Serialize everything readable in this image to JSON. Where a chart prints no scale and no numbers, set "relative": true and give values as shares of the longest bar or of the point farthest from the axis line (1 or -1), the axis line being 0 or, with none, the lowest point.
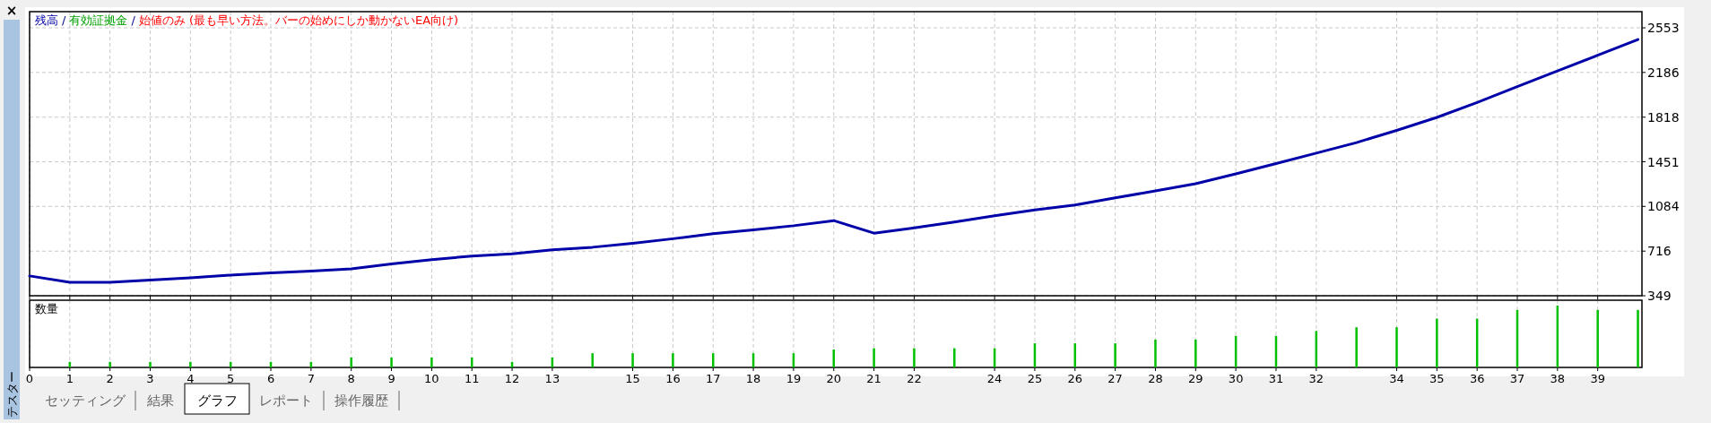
{
  "chart_data": [
    {
      "type": "line",
      "subtitle": "始値のみ (最も早い方法。バーの始めにしか動かないEA向け)",
      "annotations": [
        "/",
        "有効証拠金",
        "/"
      ],
      "legend": "top left",
      "grid": true,
      "tick_labels": "y",
      "x": [
        0,
        1,
        2,
        3,
        4,
        5,
        6,
        7,
        8,
        9,
        10,
        11,
        12,
        13,
        14,
        15,
        16,
        17,
        18,
        19,
        20,
        21,
        22,
        23,
        24,
        25,
        26,
        27,
        28,
        29,
        30,
        31,
        32,
        33,
        34,
        35,
        36,
        37,
        38,
        39,
        40
      ],
      "series": [
        {
          "name": "残高",
          "color": "#0000a8",
          "values": [
            512,
            460,
            460,
            478,
            497,
            519,
            537,
            551,
            571,
            611,
            645,
            676,
            693,
            726,
            748,
            781,
            818,
            859,
            891,
            925,
            967,
            864,
            907,
            956,
            1007,
            1055,
            1095,
            1155,
            1211,
            1270,
            1351,
            1436,
            1522,
            1609,
            1709,
            1816,
            1939,
            2069,
            2198,
            2327,
            2457
          ]
        }
      ],
      "xlim": [
        0,
        40.1
      ],
      "xticks": [
        {
          "value": 0,
          "label": null
        },
        {
          "value": 1,
          "label": null
        },
        {
          "value": 2,
          "label": null
        },
        {
          "value": 3,
          "label": null
        },
        {
          "value": 4,
          "label": null
        },
        {
          "value": 5,
          "label": null
        },
        {
          "value": 6,
          "label": null
        },
        {
          "value": 7,
          "label": null
        },
        {
          "value": 8,
          "label": null
        },
        {
          "value": 9,
          "label": null
        },
        {
          "value": 10,
          "label": null
        },
        {
          "value": 11,
          "label": null
        },
        {
          "value": 12,
          "label": null
        },
        {
          "value": 13,
          "label": null
        },
        {
          "value": 15,
          "label": null
        },
        {
          "value": 16,
          "label": null
        },
        {
          "value": 17,
          "label": null
        },
        {
          "value": 18,
          "label": null
        },
        {
          "value": 19,
          "label": null
        },
        {
          "value": 20,
          "label": null
        },
        {
          "value": 21,
          "label": null
        },
        {
          "value": 22,
          "label": null
        },
        {
          "value": 24,
          "label": null
        },
        {
          "value": 25,
          "label": null
        },
        {
          "value": 26,
          "label": null
        },
        {
          "value": 27,
          "label": null
        },
        {
          "value": 28,
          "label": null
        },
        {
          "value": 29,
          "label": null
        },
        {
          "value": 30,
          "label": null
        },
        {
          "value": 31,
          "label": null
        },
        {
          "value": 32,
          "label": null
        },
        {
          "value": 34,
          "label": null
        },
        {
          "value": 35,
          "label": null
        },
        {
          "value": 36,
          "label": null
        },
        {
          "value": 37,
          "label": null
        },
        {
          "value": 38,
          "label": null
        },
        {
          "value": 39,
          "label": null
        }
      ],
      "ylim": [
        349,
        2686
      ],
      "yticks": [
        349,
        716,
        1084,
        1451,
        1818,
        2186,
        2553
      ]
    },
    {
      "type": "bar",
      "title": "数量",
      "relative": true,
      "grid": "x",
      "tick_labels": "x",
      "color": "#00c000",
      "annotations": [
        "×",
        "テスター",
        "セッティング",
        "結果",
        "グラフ",
        "レポート",
        "操作履歴"
      ],
      "x": [
        1,
        2,
        3,
        4,
        5,
        6,
        7,
        8,
        9,
        10,
        11,
        12,
        13,
        14,
        15,
        16,
        17,
        18,
        19,
        20,
        21,
        22,
        23,
        24,
        25,
        26,
        27,
        28,
        29,
        30,
        31,
        32,
        33,
        34,
        35,
        36,
        37,
        38,
        39,
        40
      ],
      "values": [
        0.09,
        0.09,
        0.09,
        0.09,
        0.09,
        0.09,
        0.09,
        0.16,
        0.16,
        0.16,
        0.16,
        0.09,
        0.16,
        0.23,
        0.23,
        0.23,
        0.23,
        0.23,
        0.23,
        0.29,
        0.31,
        0.31,
        0.31,
        0.31,
        0.39,
        0.39,
        0.39,
        0.45,
        0.45,
        0.51,
        0.51,
        0.59,
        0.65,
        0.65,
        0.79,
        0.79,
        0.93,
        1,
        0.93,
        0.93
      ],
      "xlim": [
        0,
        40.1
      ],
      "xticks": [
        0,
        1,
        2,
        3,
        4,
        5,
        6,
        7,
        8,
        9,
        10,
        11,
        12,
        13,
        15,
        16,
        17,
        18,
        19,
        20,
        21,
        22,
        24,
        25,
        26,
        27,
        28,
        29,
        30,
        31,
        32,
        34,
        35,
        36,
        37,
        38,
        39
      ]
    }
  ]
}
